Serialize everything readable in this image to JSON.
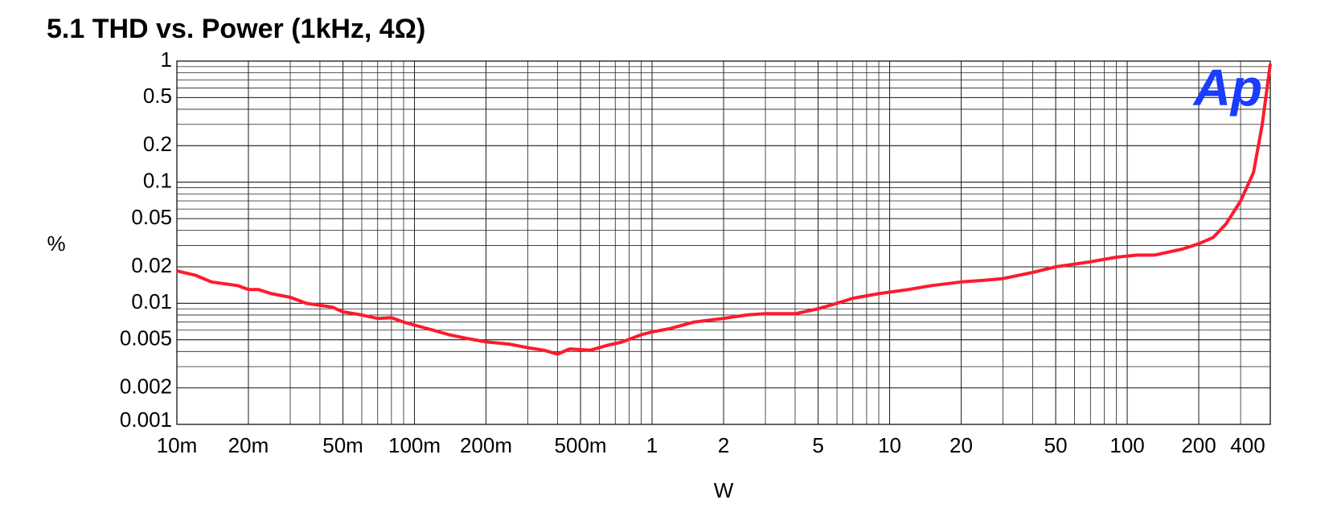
{
  "chart_data": {
    "type": "line",
    "title": "5.1   THD vs. Power (1kHz, 4Ω)",
    "xlabel": "W",
    "ylabel": "%",
    "logo": "Ap",
    "logo_color": "#1a3cff",
    "xscale": "log",
    "yscale": "log",
    "grid": true,
    "xlim": [
      0.01,
      400
    ],
    "ylim": [
      0.001,
      1
    ],
    "xticks": [
      {
        "value": 0.01,
        "label": "10m"
      },
      {
        "value": 0.02,
        "label": "20m"
      },
      {
        "value": 0.05,
        "label": "50m"
      },
      {
        "value": 0.1,
        "label": "100m"
      },
      {
        "value": 0.2,
        "label": "200m"
      },
      {
        "value": 0.5,
        "label": "500m"
      },
      1,
      2,
      5,
      10,
      20,
      50,
      100,
      200,
      400
    ],
    "yticks": [
      0.001,
      0.002,
      0.005,
      0.01,
      0.02,
      0.05,
      0.1,
      0.2,
      0.5,
      1
    ],
    "series": [
      {
        "name": "THD",
        "color": "#ff1a2e",
        "x": [
          0.01,
          0.012,
          0.014,
          0.018,
          0.02,
          0.022,
          0.025,
          0.03,
          0.035,
          0.045,
          0.05,
          0.06,
          0.07,
          0.08,
          0.09,
          0.1,
          0.12,
          0.14,
          0.16,
          0.2,
          0.25,
          0.3,
          0.35,
          0.4,
          0.45,
          0.55,
          0.65,
          0.75,
          0.9,
          1,
          1.2,
          1.5,
          2,
          2.5,
          3,
          4,
          5,
          6,
          7,
          9,
          12,
          15,
          20,
          25,
          30,
          40,
          50,
          70,
          90,
          110,
          130,
          170,
          200,
          230,
          260,
          300,
          340,
          370,
          400
        ],
        "values": [
          0.0185,
          0.017,
          0.015,
          0.014,
          0.013,
          0.013,
          0.012,
          0.0112,
          0.01,
          0.0093,
          0.0085,
          0.008,
          0.0075,
          0.0076,
          0.007,
          0.0066,
          0.006,
          0.0055,
          0.0052,
          0.0048,
          0.0046,
          0.0043,
          0.0041,
          0.0038,
          0.0042,
          0.0041,
          0.0045,
          0.0048,
          0.0055,
          0.0058,
          0.0062,
          0.007,
          0.0075,
          0.008,
          0.0082,
          0.0082,
          0.009,
          0.01,
          0.011,
          0.012,
          0.013,
          0.014,
          0.015,
          0.0155,
          0.016,
          0.018,
          0.02,
          0.022,
          0.024,
          0.025,
          0.025,
          0.028,
          0.031,
          0.035,
          0.045,
          0.07,
          0.12,
          0.3,
          0.95
        ]
      }
    ]
  }
}
